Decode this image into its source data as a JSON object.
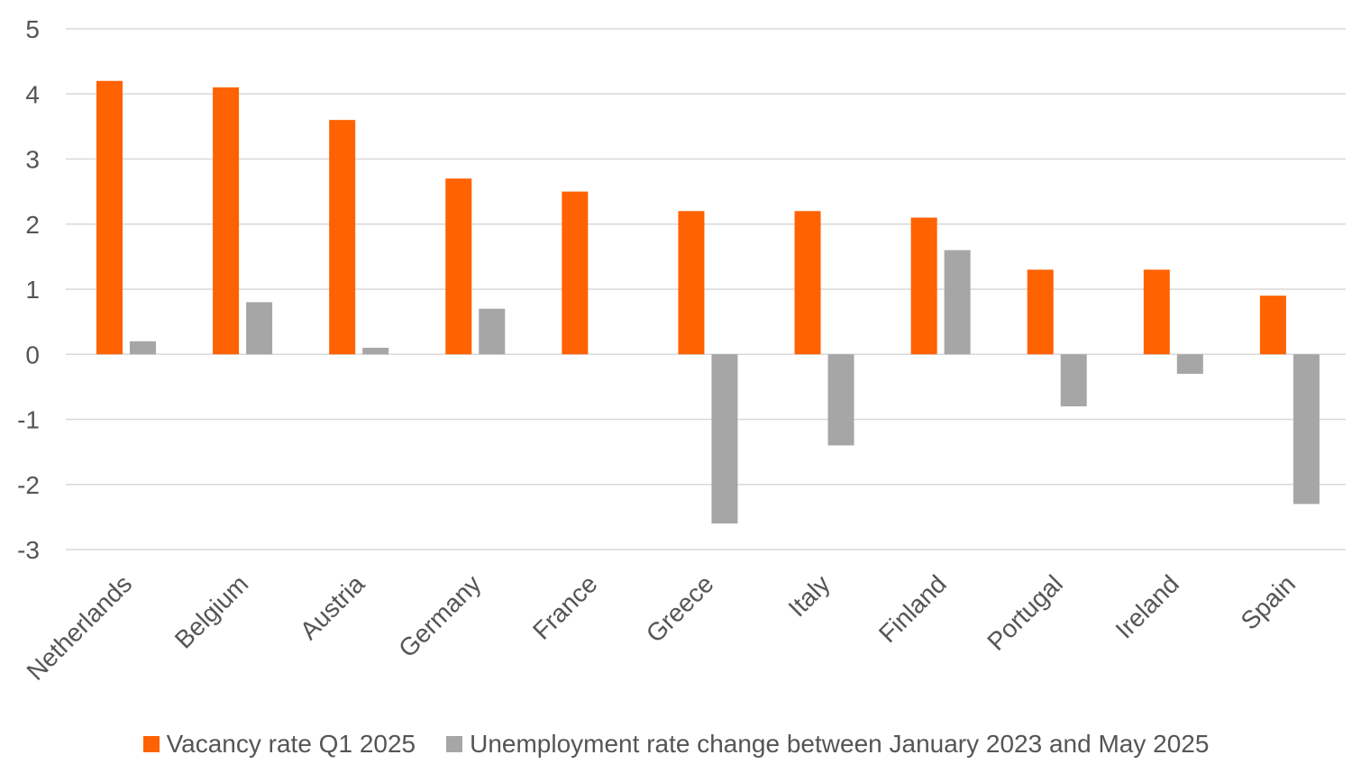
{
  "chart_data": {
    "type": "bar",
    "categories": [
      "Netherlands",
      "Belgium",
      "Austria",
      "Germany",
      "France",
      "Greece",
      "Italy",
      "Finland",
      "Portugal",
      "Ireland",
      "Spain"
    ],
    "series": [
      {
        "name": "Vacancy rate Q1 2025",
        "color": "#ff6200",
        "values": [
          4.2,
          4.1,
          3.6,
          2.7,
          2.5,
          2.2,
          2.2,
          2.1,
          1.3,
          1.3,
          0.9
        ]
      },
      {
        "name": "Unemployment rate change between January 2023 and May 2025",
        "color": "#a6a6a6",
        "values": [
          0.2,
          0.8,
          0.1,
          0.7,
          0.0,
          -2.6,
          -1.4,
          1.6,
          -0.8,
          -0.3,
          -2.3
        ]
      }
    ],
    "ylim": [
      -3,
      5
    ],
    "yticks": [
      "5",
      "4",
      "3",
      "2",
      "1",
      "0",
      "-1",
      "-2",
      "-3"
    ],
    "grid": true,
    "legend_position": "bottom"
  }
}
